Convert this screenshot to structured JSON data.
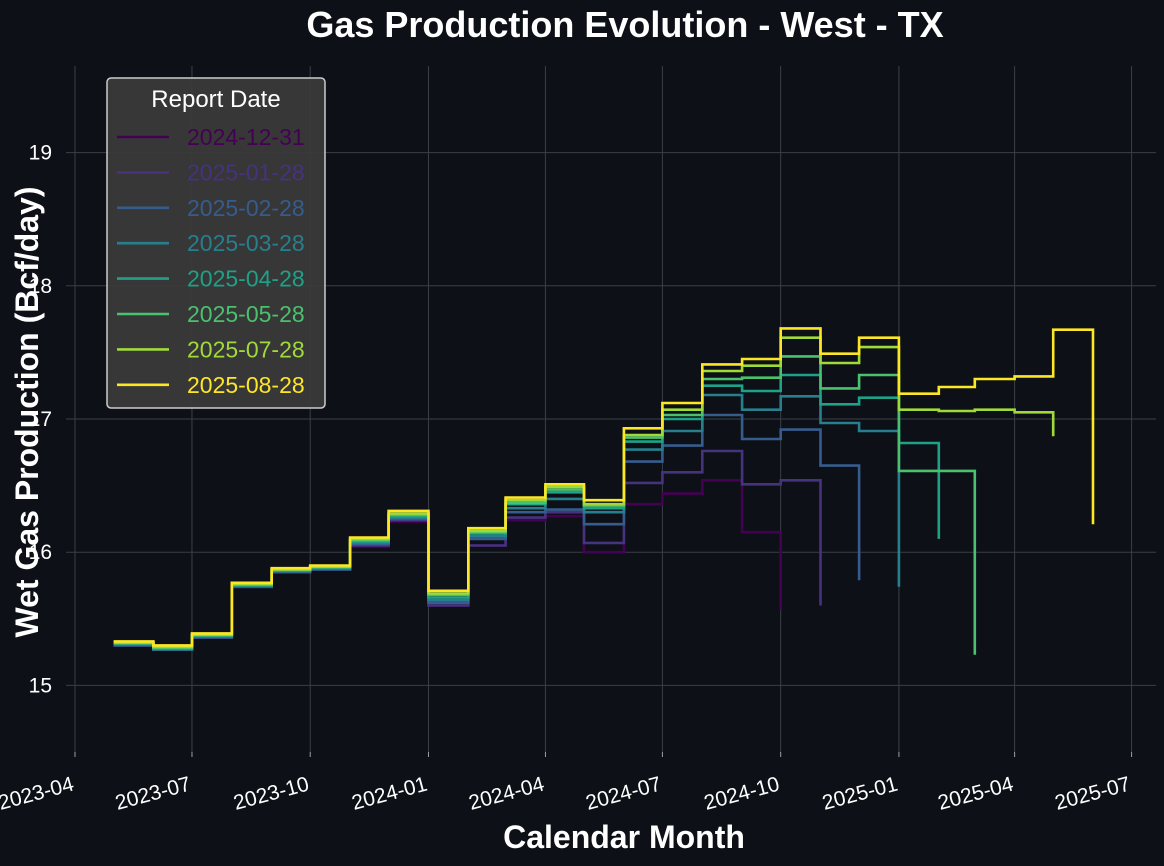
{
  "chart_data": {
    "type": "line",
    "title": "Gas Production Evolution - West - TX",
    "xlabel": "Calendar Month",
    "ylabel": "Wet Gas Production (Bcf/day)",
    "x_ticks": [
      "2023-04",
      "2023-07",
      "2023-10",
      "2024-01",
      "2024-04",
      "2024-07",
      "2024-10",
      "2025-01",
      "2025-04",
      "2025-07"
    ],
    "y_ticks": [
      15,
      16,
      17,
      18,
      19
    ],
    "ylim": [
      14.5,
      19.65
    ],
    "xlim": [
      "2023-03-25",
      "2025-07-20"
    ],
    "grid": true,
    "step": "post",
    "legend": {
      "title": "Report Date",
      "position": "top-left"
    },
    "months": [
      "2023-05",
      "2023-06",
      "2023-07",
      "2023-08",
      "2023-09",
      "2023-10",
      "2023-11",
      "2023-12",
      "2024-01",
      "2024-02",
      "2024-03",
      "2024-04",
      "2024-05",
      "2024-06",
      "2024-07",
      "2024-08",
      "2024-09",
      "2024-10",
      "2024-11",
      "2024-12",
      "2025-01",
      "2025-02",
      "2025-03",
      "2025-04",
      "2025-05",
      "2025-06"
    ],
    "series": [
      {
        "name": "2024-12-31",
        "color": "#440154",
        "values": [
          15.3,
          15.27,
          15.36,
          15.74,
          15.85,
          15.87,
          16.04,
          16.23,
          15.6,
          16.05,
          16.24,
          16.27,
          16.0,
          16.36,
          16.44,
          16.54,
          16.15,
          15.57
        ]
      },
      {
        "name": "2025-01-28",
        "color": "#46327e",
        "values": [
          15.3,
          15.27,
          15.36,
          15.74,
          15.85,
          15.87,
          16.05,
          16.24,
          15.6,
          16.05,
          16.26,
          16.3,
          16.07,
          16.52,
          16.6,
          16.76,
          16.51,
          16.54,
          15.6
        ]
      },
      {
        "name": "2025-02-28",
        "color": "#365c8d",
        "values": [
          15.3,
          15.27,
          15.36,
          15.74,
          15.85,
          15.87,
          16.06,
          16.25,
          15.62,
          16.1,
          16.3,
          16.32,
          16.21,
          16.68,
          16.8,
          17.03,
          16.85,
          16.92,
          16.65,
          15.79
        ]
      },
      {
        "name": "2025-03-28",
        "color": "#277f8e",
        "values": [
          15.31,
          15.27,
          15.37,
          15.75,
          15.86,
          15.88,
          16.07,
          16.26,
          15.64,
          16.12,
          16.33,
          16.4,
          16.3,
          16.77,
          16.91,
          17.18,
          17.07,
          17.17,
          16.97,
          16.91,
          15.74
        ]
      },
      {
        "name": "2025-04-28",
        "color": "#1fa187",
        "values": [
          15.31,
          15.28,
          15.37,
          15.75,
          15.86,
          15.88,
          16.08,
          16.27,
          15.66,
          16.14,
          16.36,
          16.45,
          16.33,
          16.83,
          17.0,
          17.25,
          17.21,
          17.33,
          17.11,
          17.16,
          16.82,
          16.1
        ]
      },
      {
        "name": "2025-05-28",
        "color": "#4ac16d",
        "values": [
          15.32,
          15.28,
          15.38,
          15.76,
          15.87,
          15.89,
          16.09,
          16.28,
          15.68,
          16.15,
          16.37,
          16.47,
          16.35,
          16.86,
          17.03,
          17.3,
          17.31,
          17.47,
          17.23,
          17.33,
          16.61,
          16.61,
          15.23
        ]
      },
      {
        "name": "2025-07-28",
        "color": "#a0da39",
        "values": [
          15.32,
          15.29,
          15.38,
          15.76,
          15.87,
          15.89,
          16.1,
          16.29,
          15.69,
          16.16,
          16.39,
          16.49,
          16.36,
          16.88,
          17.07,
          17.36,
          17.4,
          17.61,
          17.42,
          17.54,
          17.07,
          17.06,
          17.07,
          17.05,
          16.87
        ]
      },
      {
        "name": "2025-08-28",
        "color": "#fde725",
        "values": [
          15.33,
          15.3,
          15.39,
          15.77,
          15.88,
          15.9,
          16.11,
          16.31,
          15.71,
          16.18,
          16.41,
          16.51,
          16.39,
          16.93,
          17.12,
          17.41,
          17.45,
          17.68,
          17.49,
          17.61,
          17.19,
          17.24,
          17.3,
          17.32,
          17.67,
          16.21
        ]
      }
    ]
  }
}
